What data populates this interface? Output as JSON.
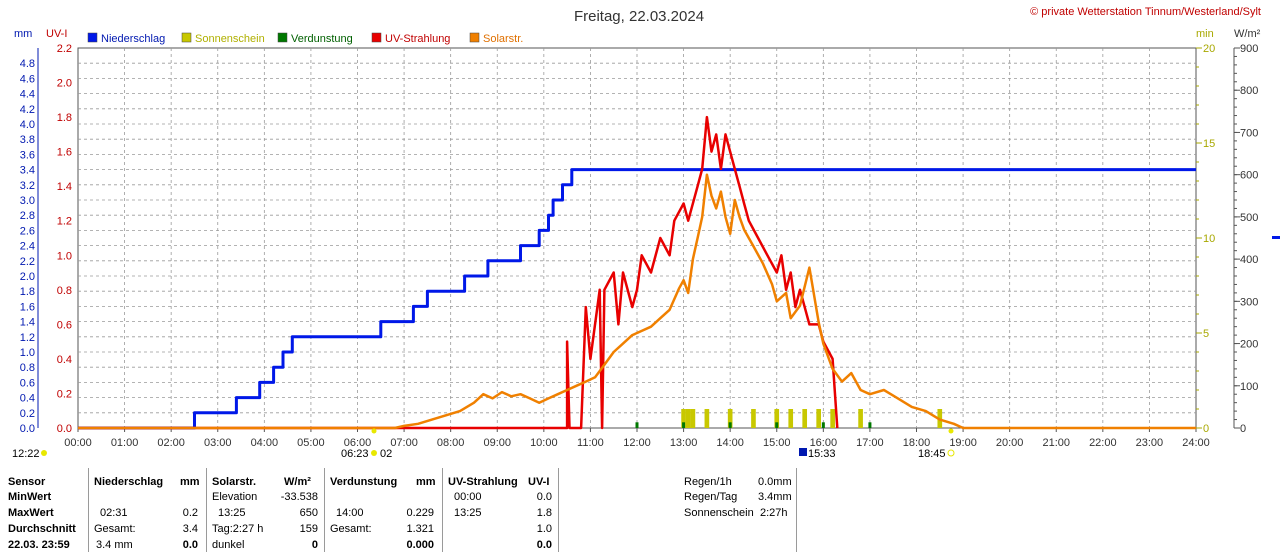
{
  "title": "Freitag, 22.03.2024",
  "copyright": "© private Wetterstation Tinnum/Westerland/Sylt",
  "colors": {
    "niederschlag": "#0018e8",
    "sonnenschein": "#c8c800",
    "verdunstung": "#007800",
    "uv": "#e80000",
    "solar": "#f08000",
    "grid": "#9a9a9a",
    "axis_mm": "#0018b0",
    "axis_uv": "#c00000",
    "axis_min": "#a8a800",
    "axis_wm2": "#000000"
  },
  "legend": [
    {
      "label": "Niederschlag",
      "color": "#0018e8",
      "text_color": "#0018b0"
    },
    {
      "label": "Sonnenschein",
      "color": "#c8c800",
      "text_color": "#b0b000"
    },
    {
      "label": "Verdunstung",
      "color": "#007800",
      "text_color": "#006000"
    },
    {
      "label": "UV-Strahlung",
      "color": "#e80000",
      "text_color": "#c00000"
    },
    {
      "label": "Solarstr.",
      "color": "#f08000",
      "text_color": "#e07000"
    }
  ],
  "axis_units": {
    "mm": "mm",
    "uv": "UV-I",
    "min": "min",
    "wm2": "W/m²"
  },
  "chart_data": {
    "type": "line",
    "xlim": [
      0,
      24
    ],
    "x_ticks": [
      "00:00",
      "01:00",
      "02:00",
      "03:00",
      "04:00",
      "05:00",
      "06:00",
      "07:00",
      "08:00",
      "09:00",
      "10:00",
      "11:00",
      "12:00",
      "13:00",
      "14:00",
      "15:00",
      "16:00",
      "17:00",
      "18:00",
      "19:00",
      "20:00",
      "21:00",
      "22:00",
      "23:00",
      "24:00"
    ],
    "y_mm": {
      "range": [
        0,
        5.0
      ],
      "ticks": [
        "0.0",
        "0.2",
        "0.4",
        "0.6",
        "0.8",
        "1.0",
        "1.2",
        "1.4",
        "1.6",
        "1.8",
        "2.0",
        "2.2",
        "2.4",
        "2.6",
        "2.8",
        "3.0",
        "3.2",
        "3.4",
        "3.6",
        "3.8",
        "4.0",
        "4.2",
        "4.4",
        "4.6",
        "4.8"
      ]
    },
    "y_uv": {
      "range": [
        0,
        2.2
      ],
      "ticks": [
        "0.0",
        "0.2",
        "0.4",
        "0.6",
        "0.8",
        "1.0",
        "1.2",
        "1.4",
        "1.6",
        "1.8",
        "2.0",
        "2.2"
      ]
    },
    "y_min": {
      "range": [
        0,
        20
      ],
      "ticks": [
        "0",
        "5",
        "10",
        "15",
        "20"
      ]
    },
    "y_wm2": {
      "range": [
        0,
        900
      ],
      "ticks": [
        "0",
        "100",
        "200",
        "300",
        "400",
        "500",
        "600",
        "700",
        "800",
        "900"
      ]
    },
    "annotations": [
      {
        "label": "12:22",
        "pos": "left"
      },
      {
        "label": "06:23",
        "pos": "sunrise"
      },
      {
        "label": "02",
        "pos": "sunrise"
      },
      {
        "label": "15:33",
        "pos": "moon"
      },
      {
        "label": "18:45",
        "pos": "sunset"
      }
    ],
    "series": [
      {
        "name": "Niederschlag",
        "axis": "mm",
        "step": true,
        "points": [
          [
            0,
            0
          ],
          [
            2.5,
            0
          ],
          [
            2.5,
            0.2
          ],
          [
            3.4,
            0.2
          ],
          [
            3.4,
            0.4
          ],
          [
            3.9,
            0.4
          ],
          [
            3.9,
            0.6
          ],
          [
            4.2,
            0.6
          ],
          [
            4.2,
            0.8
          ],
          [
            4.4,
            0.8
          ],
          [
            4.4,
            1.0
          ],
          [
            4.6,
            1.0
          ],
          [
            4.6,
            1.2
          ],
          [
            6.5,
            1.2
          ],
          [
            6.5,
            1.4
          ],
          [
            7.2,
            1.4
          ],
          [
            7.2,
            1.6
          ],
          [
            7.5,
            1.6
          ],
          [
            7.5,
            1.8
          ],
          [
            8.3,
            1.8
          ],
          [
            8.3,
            2.0
          ],
          [
            8.8,
            2.0
          ],
          [
            8.8,
            2.2
          ],
          [
            9.5,
            2.2
          ],
          [
            9.5,
            2.4
          ],
          [
            9.9,
            2.4
          ],
          [
            9.9,
            2.6
          ],
          [
            10.1,
            2.6
          ],
          [
            10.1,
            2.8
          ],
          [
            10.2,
            2.8
          ],
          [
            10.2,
            3.0
          ],
          [
            10.4,
            3.0
          ],
          [
            10.4,
            3.2
          ],
          [
            10.6,
            3.2
          ],
          [
            10.6,
            3.4
          ],
          [
            24,
            3.4
          ]
        ]
      },
      {
        "name": "UV-Strahlung",
        "axis": "uv",
        "points": [
          [
            0,
            0
          ],
          [
            10.5,
            0
          ],
          [
            10.5,
            0.5
          ],
          [
            10.55,
            0
          ],
          [
            10.8,
            0
          ],
          [
            10.9,
            0.7
          ],
          [
            11.0,
            0.4
          ],
          [
            11.2,
            0.8
          ],
          [
            11.25,
            0
          ],
          [
            11.3,
            0.8
          ],
          [
            11.5,
            0.9
          ],
          [
            11.6,
            0.6
          ],
          [
            11.7,
            0.9
          ],
          [
            11.9,
            0.7
          ],
          [
            12.0,
            0.8
          ],
          [
            12.1,
            1.0
          ],
          [
            12.3,
            0.9
          ],
          [
            12.5,
            1.1
          ],
          [
            12.7,
            1.0
          ],
          [
            12.8,
            1.2
          ],
          [
            13.0,
            1.3
          ],
          [
            13.1,
            1.2
          ],
          [
            13.3,
            1.4
          ],
          [
            13.4,
            1.5
          ],
          [
            13.5,
            1.8
          ],
          [
            13.6,
            1.6
          ],
          [
            13.7,
            1.7
          ],
          [
            13.8,
            1.5
          ],
          [
            13.9,
            1.7
          ],
          [
            14.1,
            1.5
          ],
          [
            14.2,
            1.4
          ],
          [
            14.3,
            1.3
          ],
          [
            14.4,
            1.2
          ],
          [
            14.6,
            1.1
          ],
          [
            14.8,
            1.0
          ],
          [
            15.0,
            0.9
          ],
          [
            15.1,
            1.0
          ],
          [
            15.2,
            0.8
          ],
          [
            15.3,
            0.9
          ],
          [
            15.4,
            0.7
          ],
          [
            15.5,
            0.8
          ],
          [
            15.7,
            0.6
          ],
          [
            15.9,
            0.6
          ],
          [
            16.0,
            0.5
          ],
          [
            16.2,
            0.4
          ],
          [
            16.3,
            0
          ]
        ]
      },
      {
        "name": "Solarstr.",
        "axis": "wm2",
        "points": [
          [
            0,
            0
          ],
          [
            6.8,
            0
          ],
          [
            7.0,
            5
          ],
          [
            7.3,
            10
          ],
          [
            7.6,
            20
          ],
          [
            7.9,
            30
          ],
          [
            8.2,
            40
          ],
          [
            8.5,
            60
          ],
          [
            8.7,
            80
          ],
          [
            8.9,
            70
          ],
          [
            9.1,
            85
          ],
          [
            9.3,
            75
          ],
          [
            9.5,
            80
          ],
          [
            9.7,
            70
          ],
          [
            9.9,
            60
          ],
          [
            10.1,
            70
          ],
          [
            10.3,
            80
          ],
          [
            10.5,
            90
          ],
          [
            10.7,
            100
          ],
          [
            10.9,
            110
          ],
          [
            11.1,
            120
          ],
          [
            11.3,
            150
          ],
          [
            11.5,
            180
          ],
          [
            11.7,
            200
          ],
          [
            11.9,
            220
          ],
          [
            12.1,
            230
          ],
          [
            12.3,
            240
          ],
          [
            12.5,
            260
          ],
          [
            12.7,
            280
          ],
          [
            12.9,
            330
          ],
          [
            13.0,
            350
          ],
          [
            13.1,
            320
          ],
          [
            13.2,
            400
          ],
          [
            13.3,
            450
          ],
          [
            13.4,
            500
          ],
          [
            13.5,
            600
          ],
          [
            13.6,
            550
          ],
          [
            13.7,
            520
          ],
          [
            13.8,
            560
          ],
          [
            13.9,
            500
          ],
          [
            14.0,
            460
          ],
          [
            14.1,
            540
          ],
          [
            14.2,
            500
          ],
          [
            14.3,
            470
          ],
          [
            14.4,
            450
          ],
          [
            14.5,
            430
          ],
          [
            14.7,
            390
          ],
          [
            14.9,
            340
          ],
          [
            15.0,
            300
          ],
          [
            15.2,
            320
          ],
          [
            15.3,
            260
          ],
          [
            15.5,
            290
          ],
          [
            15.7,
            380
          ],
          [
            15.9,
            250
          ],
          [
            16.0,
            200
          ],
          [
            16.2,
            140
          ],
          [
            16.4,
            110
          ],
          [
            16.6,
            130
          ],
          [
            16.8,
            90
          ],
          [
            17.0,
            80
          ],
          [
            17.3,
            90
          ],
          [
            17.6,
            70
          ],
          [
            17.9,
            50
          ],
          [
            18.2,
            40
          ],
          [
            18.5,
            20
          ],
          [
            18.8,
            10
          ],
          [
            19.0,
            0
          ],
          [
            24,
            0
          ]
        ]
      },
      {
        "name": "Sonnenschein",
        "axis": "min",
        "type": "bar",
        "points": [
          [
            13.0,
            1.0
          ],
          [
            13.1,
            1.0
          ],
          [
            13.2,
            1.0
          ],
          [
            13.5,
            1.0
          ],
          [
            14.0,
            1.0
          ],
          [
            14.5,
            1.0
          ],
          [
            15.0,
            1.0
          ],
          [
            15.3,
            1.0
          ],
          [
            15.6,
            1.0
          ],
          [
            15.9,
            1.0
          ],
          [
            16.2,
            1.0
          ],
          [
            16.8,
            1.0
          ],
          [
            18.5,
            1.0
          ]
        ]
      },
      {
        "name": "Verdunstung",
        "axis": "min",
        "type": "bar",
        "points": [
          [
            12.0,
            0.3
          ],
          [
            13.0,
            0.3
          ],
          [
            14.0,
            0.3
          ],
          [
            15.0,
            0.3
          ],
          [
            16.0,
            0.3
          ],
          [
            17.0,
            0.3
          ]
        ]
      }
    ]
  },
  "table": {
    "col1": {
      "header": "Sensor",
      "rows": [
        "MinWert",
        "MaxWert",
        "Durchschnitt",
        "22.03.  23:59"
      ]
    },
    "niederschlag": {
      "header": "Niederschlag",
      "unit": "mm",
      "r2_time": "02:31",
      "r2_val": "0.2",
      "r3_label": "Gesamt:",
      "r3_val": "3.4",
      "r4_label": "3.4 mm",
      "r4_val": "0.0"
    },
    "solar": {
      "header": "Solarstr.",
      "unit": "W/m²",
      "r1_label": "Elevation",
      "r1_val": "-33.538",
      "r2_time": "13:25",
      "r2_val": "650",
      "r3_label": "Tag:2:27 h",
      "r3_val": "159",
      "r4_label": "dunkel",
      "r4_val": "0"
    },
    "verdunstung": {
      "header": "Verdunstung",
      "unit": "mm",
      "r2_time": "14:00",
      "r2_val": "0.229",
      "r3_label": "Gesamt:",
      "r3_val": "1.321",
      "r4_val": "0.000"
    },
    "uv": {
      "header": "UV-Strahlung",
      "unit": "UV-I",
      "r1_time": "00:00",
      "r1_val": "0.0",
      "r2_time": "13:25",
      "r2_val": "1.8",
      "r3_val": "1.0",
      "r4_val": "0.0"
    },
    "extra": [
      {
        "label": "Regen/1h",
        "value": "0.0mm"
      },
      {
        "label": "Regen/Tag",
        "value": "3.4mm"
      },
      {
        "label": "Sonnenschein",
        "value": "2:27h"
      }
    ]
  }
}
